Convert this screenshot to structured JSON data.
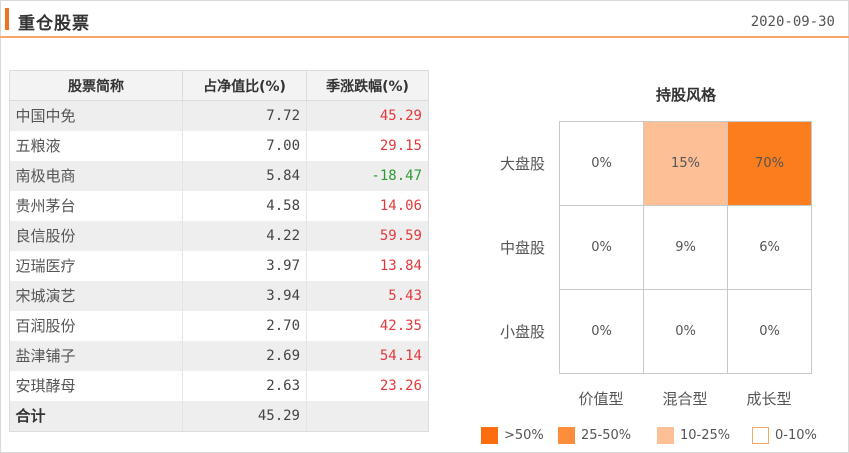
{
  "header": {
    "title": "重仓股票",
    "date": "2020-09-30"
  },
  "table": {
    "columns": [
      "股票简称",
      "占净值比(%)",
      "季涨跌幅(%)"
    ],
    "rows": [
      {
        "name": "中国中免",
        "ratio": "7.72",
        "change": "45.29",
        "dir": "pos"
      },
      {
        "name": "五粮液",
        "ratio": "7.00",
        "change": "29.15",
        "dir": "pos"
      },
      {
        "name": "南极电商",
        "ratio": "5.84",
        "change": "-18.47",
        "dir": "neg"
      },
      {
        "name": "贵州茅台",
        "ratio": "4.58",
        "change": "14.06",
        "dir": "pos"
      },
      {
        "name": "良信股份",
        "ratio": "4.22",
        "change": "59.59",
        "dir": "pos"
      },
      {
        "name": "迈瑞医疗",
        "ratio": "3.97",
        "change": "13.84",
        "dir": "pos"
      },
      {
        "name": "宋城演艺",
        "ratio": "3.94",
        "change": "5.43",
        "dir": "pos"
      },
      {
        "name": "百润股份",
        "ratio": "2.70",
        "change": "42.35",
        "dir": "pos"
      },
      {
        "name": "盐津铺子",
        "ratio": "2.69",
        "change": "54.14",
        "dir": "pos"
      },
      {
        "name": "安琪酵母",
        "ratio": "2.63",
        "change": "23.26",
        "dir": "pos"
      }
    ],
    "total": {
      "label": "合计",
      "ratio": "45.29",
      "change": ""
    }
  },
  "style_box": {
    "title": "持股风格",
    "row_labels": [
      "大盘股",
      "中盘股",
      "小盘股"
    ],
    "col_labels": [
      "价值型",
      "混合型",
      "成长型"
    ],
    "cells": [
      [
        "0%",
        "15%",
        "70%"
      ],
      [
        "0%",
        "9%",
        "6%"
      ],
      [
        "0%",
        "0%",
        "0%"
      ]
    ],
    "cell_colors": [
      [
        "#ffffff",
        "#fcbf96",
        "#fb7d1e"
      ],
      [
        "#ffffff",
        "#ffffff",
        "#ffffff"
      ],
      [
        "#ffffff",
        "#ffffff",
        "#ffffff"
      ]
    ]
  },
  "legend": [
    {
      "label": ">50%",
      "color": "#fb6d0e"
    },
    {
      "label": "25-50%",
      "color": "#fb8d3c"
    },
    {
      "label": "10-25%",
      "color": "#fcbf96"
    },
    {
      "label": "0-10%",
      "color": "#ffffff"
    }
  ]
}
